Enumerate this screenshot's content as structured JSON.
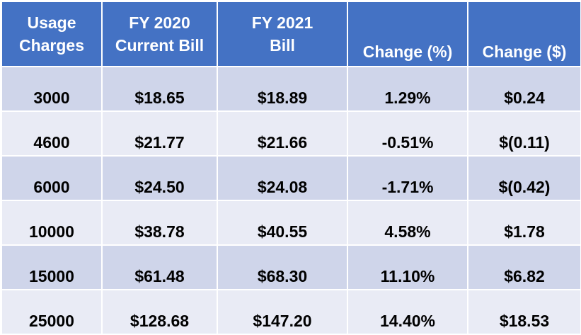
{
  "chart_data": {
    "type": "table",
    "header": {
      "usage_line1": "Usage",
      "usage_line2": "Charges",
      "fy2020_line1": "FY 2020",
      "fy2020_line2": "Current Bill",
      "fy2021_line1": "FY 2021",
      "fy2021_line2": "Bill",
      "change_pct": "Change (%)",
      "change_dollar": "Change ($)"
    },
    "rows": [
      {
        "usage": "3000",
        "fy2020": "$18.65",
        "fy2021": "$18.89",
        "change_pct": "1.29%",
        "change_dollar": "$0.24"
      },
      {
        "usage": "4600",
        "fy2020": "$21.77",
        "fy2021": "$21.66",
        "change_pct": "-0.51%",
        "change_dollar": "$(0.11)"
      },
      {
        "usage": "6000",
        "fy2020": "$24.50",
        "fy2021": "$24.08",
        "change_pct": "-1.71%",
        "change_dollar": "$(0.42)"
      },
      {
        "usage": "10000",
        "fy2020": "$38.78",
        "fy2021": "$40.55",
        "change_pct": "4.58%",
        "change_dollar": "$1.78"
      },
      {
        "usage": "15000",
        "fy2020": "$61.48",
        "fy2021": "$68.30",
        "change_pct": "11.10%",
        "change_dollar": "$6.82"
      },
      {
        "usage": "25000",
        "fy2020": "$128.68",
        "fy2021": "$147.20",
        "change_pct": "14.40%",
        "change_dollar": "$18.53"
      }
    ]
  },
  "colors": {
    "header_bg": "#4472c4",
    "row_dark": "#cfd5ea",
    "row_light": "#e9ebf5"
  }
}
